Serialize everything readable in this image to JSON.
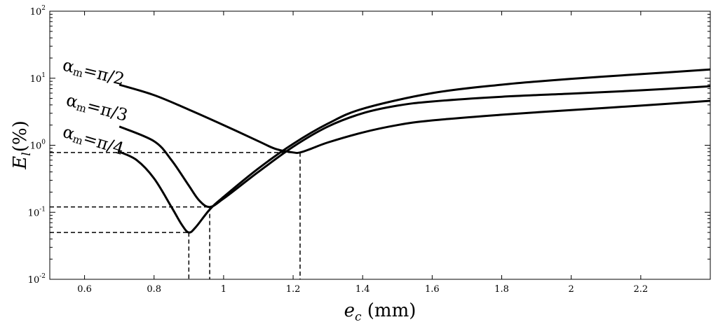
{
  "chart_data": {
    "type": "line",
    "title": "",
    "xlabel": {
      "main": "e",
      "sub": "c",
      "unit": " (mm)"
    },
    "ylabel": {
      "main": "E",
      "sub": "l",
      "unit": "(%)"
    },
    "xlim": [
      0.5,
      2.4
    ],
    "ylim": [
      0.01,
      100
    ],
    "yscale": "log",
    "grid": false,
    "x_ticks": [
      {
        "value": 0.6,
        "label": "0.6"
      },
      {
        "value": 0.8,
        "label": "0.8"
      },
      {
        "value": 1.0,
        "label": "1"
      },
      {
        "value": 1.2,
        "label": "1.2"
      },
      {
        "value": 1.4,
        "label": "1.4"
      },
      {
        "value": 1.6,
        "label": "1.6"
      },
      {
        "value": 1.8,
        "label": "1.8"
      },
      {
        "value": 2.0,
        "label": "2"
      },
      {
        "value": 2.2,
        "label": "2.2"
      }
    ],
    "y_ticks": [
      {
        "value": 0.01,
        "base": "10",
        "exp": "-2"
      },
      {
        "value": 0.1,
        "base": "10",
        "exp": "-1"
      },
      {
        "value": 1,
        "base": "10",
        "exp": "0"
      },
      {
        "value": 10,
        "base": "10",
        "exp": "1"
      },
      {
        "value": 100,
        "base": "10",
        "exp": "2"
      }
    ],
    "series": [
      {
        "label": {
          "sym": "α",
          "sub": "m",
          "eq": "=π/2"
        },
        "x": [
          0.7,
          0.8,
          0.9,
          1.0,
          1.1,
          1.15,
          1.2,
          1.22,
          1.25,
          1.3,
          1.4,
          1.5,
          1.6,
          1.8,
          2.0,
          2.2,
          2.4
        ],
        "y": [
          8.0,
          5.6,
          3.4,
          2.0,
          1.15,
          0.88,
          0.78,
          0.78,
          0.88,
          1.1,
          1.55,
          2.0,
          2.35,
          2.85,
          3.35,
          3.9,
          4.6
        ]
      },
      {
        "label": {
          "sym": "α",
          "sub": "m",
          "eq": "=π/3"
        },
        "x": [
          0.7,
          0.8,
          0.85,
          0.9,
          0.93,
          0.96,
          1.0,
          1.1,
          1.2,
          1.3,
          1.4,
          1.5,
          1.6,
          1.8,
          2.0,
          2.2,
          2.4
        ],
        "y": [
          1.9,
          1.15,
          0.6,
          0.25,
          0.15,
          0.12,
          0.16,
          0.4,
          0.95,
          1.9,
          3.0,
          3.9,
          4.5,
          5.3,
          5.9,
          6.6,
          7.6
        ]
      },
      {
        "label": {
          "sym": "α",
          "sub": "m",
          "eq": "=π/4"
        },
        "x": [
          0.7,
          0.75,
          0.8,
          0.85,
          0.88,
          0.9,
          0.92,
          0.96,
          1.0,
          1.1,
          1.2,
          1.3,
          1.4,
          1.6,
          1.8,
          2.0,
          2.2,
          2.4
        ],
        "y": [
          0.8,
          0.6,
          0.32,
          0.12,
          0.065,
          0.05,
          0.06,
          0.11,
          0.17,
          0.45,
          1.05,
          2.1,
          3.5,
          6.0,
          8.0,
          9.8,
          11.5,
          13.5
        ]
      }
    ],
    "annotations": [
      {
        "type": "dashed-guide",
        "x": 0.9,
        "y": 0.05
      },
      {
        "type": "dashed-guide",
        "x": 0.96,
        "y": 0.12
      },
      {
        "type": "dashed-guide",
        "x": 1.22,
        "y": 0.78
      }
    ]
  }
}
